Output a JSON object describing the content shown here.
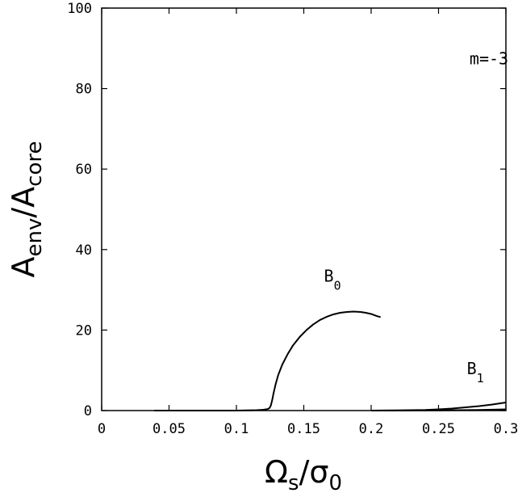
{
  "chart_data": {
    "type": "line",
    "title": "",
    "xlabel": {
      "main": "Ω",
      "sub": "s",
      "div": "/σ",
      "div_sub": "0"
    },
    "ylabel": {
      "main": "A",
      "sub": "env",
      "div": "/A",
      "div_sub": "core"
    },
    "xlim": [
      0,
      0.3
    ],
    "ylim": [
      0,
      100
    ],
    "grid": false,
    "legend": "none",
    "x_ticks": [
      0,
      0.05,
      0.1,
      0.15,
      0.2,
      0.25,
      0.3
    ],
    "x_tick_labels": [
      "0",
      "0.05",
      "0.1",
      "0.15",
      "0.2",
      "0.25",
      "0.3"
    ],
    "y_ticks": [
      0,
      20,
      40,
      60,
      80,
      100
    ],
    "y_tick_labels": [
      "0",
      "20",
      "40",
      "60",
      "80",
      "100"
    ],
    "annotations": [
      {
        "text": "m=-3",
        "x": 0.273,
        "y": 86
      },
      {
        "label": "B",
        "sub": "0",
        "x": 0.165,
        "y": 32
      },
      {
        "label": "B",
        "sub": "1",
        "x": 0.271,
        "y": 9
      }
    ],
    "series": [
      {
        "x": [
          0.039,
          0.06,
          0.08,
          0.1,
          0.115,
          0.12,
          0.123,
          0.1245,
          0.1255,
          0.1265,
          0.1275,
          0.129,
          0.131,
          0.134,
          0.138,
          0.142,
          0.147,
          0.152,
          0.157,
          0.162,
          0.167,
          0.172,
          0.177,
          0.182,
          0.187,
          0.192,
          0.196,
          0.2,
          0.204,
          0.207
        ],
        "y": [
          0,
          0,
          0,
          0,
          0.1,
          0.2,
          0.35,
          0.6,
          1.2,
          2.5,
          4.2,
          6.4,
          8.8,
          11.4,
          14.0,
          16.2,
          18.3,
          20.0,
          21.4,
          22.5,
          23.3,
          23.9,
          24.3,
          24.5,
          24.6,
          24.5,
          24.3,
          24.0,
          23.5,
          23.2
        ],
        "color": "#000000"
      },
      {
        "x": [
          0.2,
          0.22,
          0.24,
          0.25,
          0.26,
          0.27,
          0.28,
          0.29,
          0.3
        ],
        "y": [
          0,
          0.05,
          0.15,
          0.3,
          0.5,
          0.8,
          1.1,
          1.5,
          2.0
        ],
        "color": "#000000"
      },
      {
        "x": [
          0.2,
          0.25,
          0.28,
          0.3
        ],
        "y": [
          0,
          0.05,
          0.15,
          0.3
        ],
        "color": "#000000"
      }
    ]
  }
}
